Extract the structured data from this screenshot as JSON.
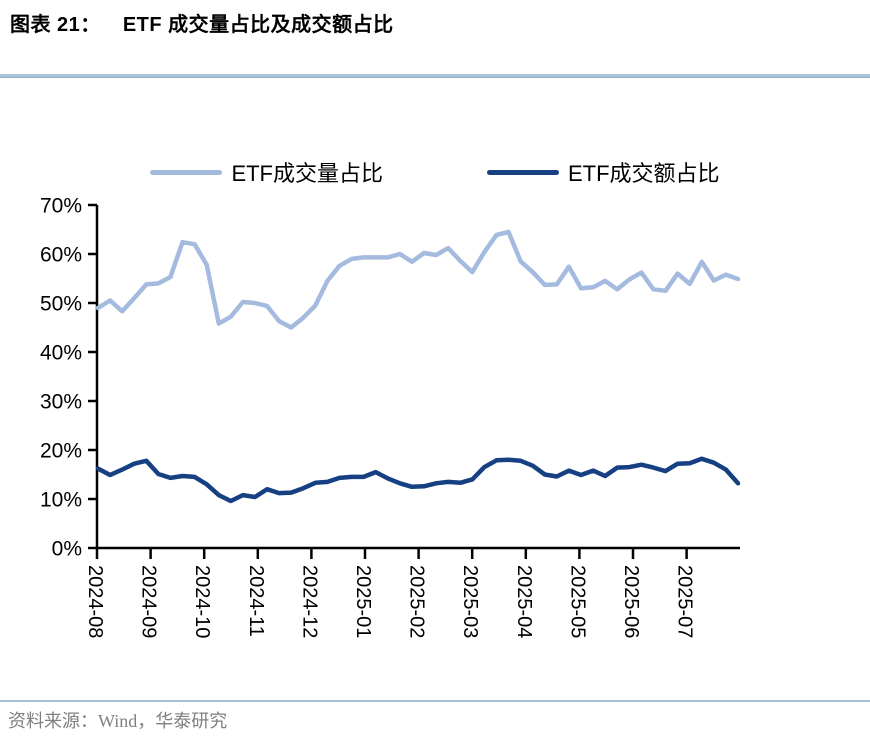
{
  "header": {
    "figure_label": "图表 21：",
    "figure_title": "ETF 成交量占比及成交额占比"
  },
  "footer": {
    "source": "资料来源：Wind，华泰研究"
  },
  "chart_data": {
    "type": "line",
    "title": "ETF 成交量占比及成交额占比",
    "xlabel": "",
    "ylabel": "",
    "ylim": [
      0,
      70
    ],
    "y_tick_step": 10,
    "y_tick_labels": [
      "0%",
      "10%",
      "20%",
      "30%",
      "40%",
      "50%",
      "60%",
      "70%"
    ],
    "x_tick_labels": [
      "2024-08",
      "2024-09",
      "2024-10",
      "2024-11",
      "2024-12",
      "2025-01",
      "2025-02",
      "2025-03",
      "2025-04",
      "2025-05",
      "2025-06",
      "2025-07"
    ],
    "grid": false,
    "legend_position": "top",
    "axis_color": "#000000",
    "series": [
      {
        "name": "ETF成交量占比",
        "color": "#a4bbdf",
        "unit": "%",
        "values": [
          49.0,
          50.5,
          48.3,
          51.0,
          53.8,
          54.0,
          55.3,
          62.4,
          62.0,
          57.8,
          45.8,
          47.2,
          50.2,
          50.0,
          49.4,
          46.3,
          45.0,
          47.0,
          49.5,
          54.5,
          57.6,
          59.0,
          59.3,
          59.3,
          59.3,
          60.0,
          58.4,
          60.2,
          59.8,
          61.2,
          58.6,
          56.3,
          60.4,
          63.9,
          64.5,
          58.5,
          56.3,
          53.7,
          53.8,
          57.4,
          53.0,
          53.2,
          54.5,
          52.8,
          54.8,
          56.2,
          52.8,
          52.5,
          56.0,
          53.9,
          58.4,
          54.6,
          55.8,
          54.9
        ]
      },
      {
        "name": "ETF成交额占比",
        "color": "#174083",
        "unit": "%",
        "values": [
          16.2,
          14.9,
          16.0,
          17.2,
          17.8,
          15.1,
          14.3,
          14.7,
          14.5,
          13.0,
          10.8,
          9.6,
          10.8,
          10.4,
          12.0,
          11.2,
          11.3,
          12.2,
          13.3,
          13.5,
          14.3,
          14.5,
          14.5,
          15.5,
          14.2,
          13.2,
          12.5,
          12.6,
          13.2,
          13.5,
          13.3,
          14.0,
          16.5,
          17.9,
          18.0,
          17.8,
          16.8,
          15.0,
          14.6,
          15.8,
          14.9,
          15.8,
          14.7,
          16.4,
          16.5,
          17.0,
          16.4,
          15.7,
          17.2,
          17.3,
          18.2,
          17.4,
          16.0,
          13.2
        ]
      }
    ]
  }
}
